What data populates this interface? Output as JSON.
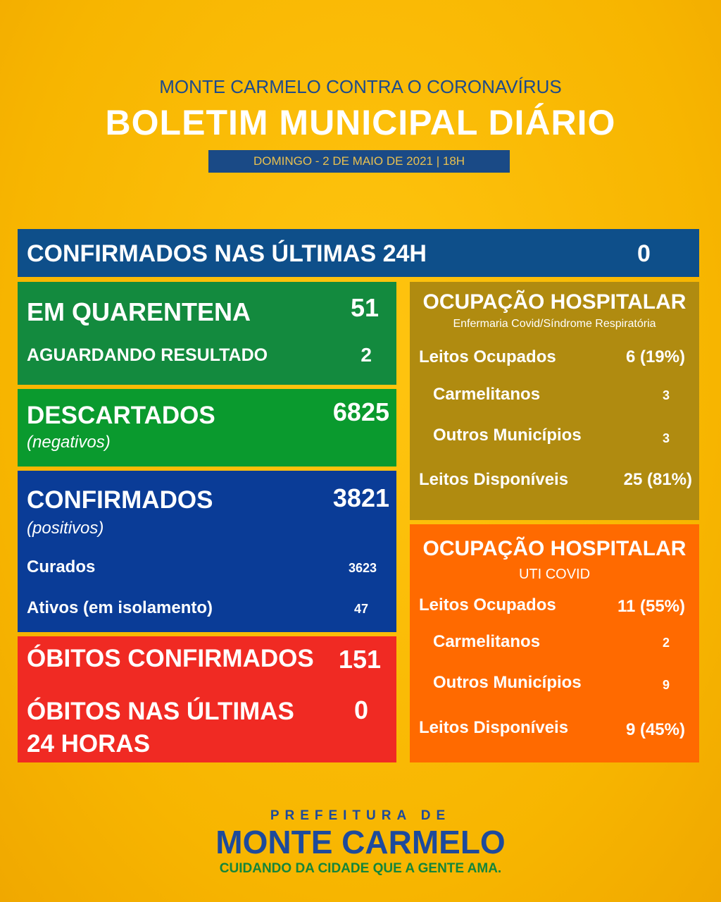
{
  "header": {
    "subtitle": "MONTE CARMELO CONTRA O CORONAVÍRUS",
    "title": "BOLETIM MUNICIPAL DIÁRIO",
    "date": "DOMINGO - 2 DE MAIO DE 2021 | 18H"
  },
  "confirmed_24h": {
    "label": "CONFIRMADOS NAS ÚLTIMAS 24H",
    "value": "0"
  },
  "quarantine": {
    "label": "EM QUARENTENA",
    "value": "51"
  },
  "awaiting": {
    "label": "AGUARDANDO RESULTADO",
    "value": "2"
  },
  "discarded": {
    "label": "DESCARTADOS",
    "note": "(negativos)",
    "value": "6825"
  },
  "confirmed": {
    "label": "CONFIRMADOS",
    "note": "(positivos)",
    "value": "3821",
    "cured": {
      "label": "Curados",
      "value": "3623"
    },
    "active": {
      "label": "Ativos (em isolamento)",
      "value": "47"
    }
  },
  "deaths": {
    "label": "ÓBITOS CONFIRMADOS",
    "value": "151"
  },
  "deaths_24h": {
    "label": "ÓBITOS NAS ÚLTIMAS 24 HORAS",
    "value": "0"
  },
  "ward": {
    "title": "OCUPAÇÃO HOSPITALAR",
    "subtitle": "Enfermaria Covid/Síndrome Respiratória",
    "rows": [
      {
        "label": "Leitos Ocupados",
        "value": "6 (19%)"
      },
      {
        "label": "Carmelitanos",
        "value": "3"
      },
      {
        "label": "Outros Municípios",
        "value": "3"
      },
      {
        "label": "Leitos Disponíveis",
        "value": "25 (81%)"
      }
    ]
  },
  "icu": {
    "title": "OCUPAÇÃO HOSPITALAR",
    "subtitle": "UTI COVID",
    "rows": [
      {
        "label": "Leitos Ocupados",
        "value": "11 (55%)"
      },
      {
        "label": "Carmelitanos",
        "value": "2"
      },
      {
        "label": "Outros Municípios",
        "value": "9"
      },
      {
        "label": "Leitos Disponíveis",
        "value": "9 (45%)"
      }
    ]
  },
  "footer": {
    "prefix": "PREFEITURA DE",
    "name": "MONTE CARMELO",
    "slogan": "CUIDANDO DA CIDADE QUE A GENTE AMA."
  }
}
